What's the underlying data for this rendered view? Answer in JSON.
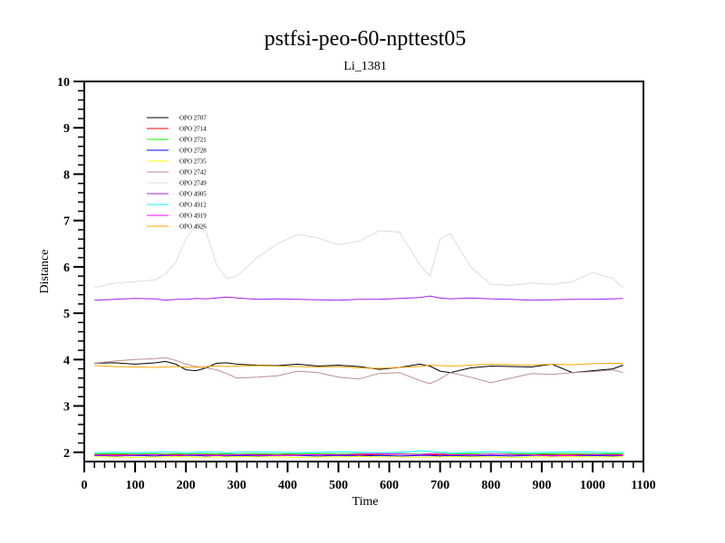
{
  "chart_data": {
    "type": "line",
    "title": "pstfsi-peo-60-npttest05",
    "subtitle": "Li_1381",
    "xlabel": "Time",
    "ylabel": "Distance",
    "xlim": [
      0,
      1100
    ],
    "ylim": [
      1.8,
      10
    ],
    "x_ticks": [
      0,
      100,
      200,
      300,
      400,
      500,
      600,
      700,
      800,
      900,
      1000,
      1100
    ],
    "y_ticks": [
      2,
      3,
      4,
      5,
      6,
      7,
      8,
      9,
      10
    ],
    "grid": false,
    "legend_position": "top-left",
    "x": [
      20,
      60,
      100,
      140,
      160,
      180,
      200,
      220,
      240,
      260,
      280,
      300,
      340,
      380,
      420,
      460,
      500,
      540,
      580,
      620,
      660,
      680,
      700,
      720,
      760,
      800,
      840,
      880,
      920,
      960,
      1000,
      1040,
      1060
    ],
    "series": [
      {
        "name": "OPO 2707",
        "color": "#000000",
        "values": [
          3.92,
          3.93,
          3.9,
          3.93,
          3.96,
          3.9,
          3.78,
          3.76,
          3.82,
          3.92,
          3.93,
          3.9,
          3.88,
          3.87,
          3.9,
          3.86,
          3.88,
          3.85,
          3.79,
          3.83,
          3.9,
          3.86,
          3.75,
          3.72,
          3.82,
          3.86,
          3.85,
          3.84,
          3.9,
          3.72,
          3.76,
          3.8,
          3.88
        ]
      },
      {
        "name": "OPO 2714",
        "color": "#ff0000",
        "values": [
          1.95,
          1.95,
          1.94,
          1.96,
          1.95,
          1.95,
          1.94,
          1.95,
          1.96,
          1.95,
          1.94,
          1.95,
          1.95,
          1.96,
          1.94,
          1.95,
          1.95,
          1.94,
          1.95,
          1.96,
          1.95,
          1.95,
          1.94,
          1.95,
          1.95,
          1.96,
          1.95,
          1.94,
          1.95,
          1.95,
          1.96,
          1.95,
          1.95
        ]
      },
      {
        "name": "OPO 2721",
        "color": "#00ff00",
        "values": [
          1.96,
          1.97,
          1.96,
          1.97,
          1.96,
          1.97,
          1.96,
          1.97,
          1.97,
          1.96,
          1.97,
          1.96,
          1.97,
          1.96,
          1.97,
          1.97,
          1.96,
          1.97,
          1.96,
          1.97,
          1.96,
          1.97,
          1.97,
          1.96,
          1.97,
          1.96,
          1.97,
          1.96,
          1.97,
          1.97,
          1.96,
          1.97,
          1.96
        ]
      },
      {
        "name": "OPO 2728",
        "color": "#0000ff",
        "values": [
          1.93,
          1.92,
          1.93,
          1.92,
          1.93,
          1.92,
          1.93,
          1.93,
          1.92,
          1.93,
          1.92,
          1.93,
          1.92,
          1.93,
          1.93,
          1.92,
          1.93,
          1.92,
          1.93,
          1.92,
          1.93,
          1.93,
          1.92,
          1.93,
          1.92,
          1.93,
          1.92,
          1.93,
          1.93,
          1.92,
          1.93,
          1.92,
          1.93
        ]
      },
      {
        "name": "OPO 2735",
        "color": "#ffff00",
        "values": [
          1.9,
          1.9,
          1.89,
          1.9,
          1.9,
          1.91,
          1.9,
          1.9,
          1.89,
          1.9,
          1.9,
          1.91,
          1.9,
          1.9,
          1.89,
          1.9,
          1.9,
          1.91,
          1.9,
          1.9,
          1.89,
          1.9,
          1.9,
          1.91,
          1.9,
          1.9,
          1.89,
          1.9,
          1.9,
          1.91,
          1.9,
          1.9,
          1.9
        ]
      },
      {
        "name": "OPO 2742",
        "color": "#bc8f8f",
        "values": [
          3.92,
          3.97,
          4.0,
          4.02,
          4.04,
          3.98,
          3.9,
          3.85,
          3.82,
          3.78,
          3.7,
          3.6,
          3.62,
          3.65,
          3.75,
          3.72,
          3.62,
          3.58,
          3.7,
          3.72,
          3.55,
          3.48,
          3.58,
          3.72,
          3.62,
          3.5,
          3.6,
          3.7,
          3.68,
          3.72,
          3.74,
          3.78,
          3.72
        ]
      },
      {
        "name": "OPO 2749",
        "color": "#dcdcdc",
        "values": [
          5.55,
          5.65,
          5.68,
          5.72,
          5.85,
          6.1,
          6.6,
          6.9,
          6.75,
          6.05,
          5.75,
          5.8,
          6.2,
          6.5,
          6.7,
          6.62,
          6.48,
          6.55,
          6.78,
          6.75,
          6.05,
          5.8,
          6.6,
          6.72,
          6.0,
          5.62,
          5.6,
          5.65,
          5.62,
          5.68,
          5.88,
          5.75,
          5.55
        ]
      },
      {
        "name": "OPO 4905",
        "color": "#a020f0",
        "values": [
          5.28,
          5.3,
          5.32,
          5.31,
          5.28,
          5.3,
          5.3,
          5.32,
          5.31,
          5.33,
          5.35,
          5.33,
          5.3,
          5.31,
          5.3,
          5.29,
          5.28,
          5.3,
          5.3,
          5.32,
          5.34,
          5.37,
          5.33,
          5.31,
          5.33,
          5.31,
          5.3,
          5.28,
          5.29,
          5.3,
          5.3,
          5.31,
          5.32
        ]
      },
      {
        "name": "OPO 4912",
        "color": "#00ffff",
        "values": [
          1.99,
          2.0,
          1.99,
          2.0,
          2.01,
          2.0,
          1.99,
          2.0,
          2.01,
          2.0,
          1.99,
          2.0,
          2.01,
          2.0,
          1.99,
          2.0,
          2.01,
          2.0,
          1.99,
          2.0,
          2.03,
          2.02,
          2.0,
          1.99,
          2.0,
          2.01,
          2.0,
          1.99,
          2.0,
          2.01,
          2.0,
          1.99,
          2.0
        ]
      },
      {
        "name": "OPO 4919",
        "color": "#ff00ff",
        "values": [
          1.94,
          1.93,
          1.94,
          1.95,
          1.94,
          1.93,
          1.94,
          1.95,
          1.94,
          1.93,
          1.94,
          1.95,
          1.94,
          1.93,
          1.94,
          1.95,
          1.94,
          1.96,
          1.97,
          1.96,
          1.95,
          1.97,
          1.96,
          1.95,
          1.94,
          1.96,
          1.95,
          1.94,
          1.92,
          1.93,
          1.95,
          1.94,
          1.93
        ]
      },
      {
        "name": "OPO 4926",
        "color": "#ffa500",
        "values": [
          3.87,
          3.85,
          3.84,
          3.83,
          3.84,
          3.85,
          3.84,
          3.83,
          3.85,
          3.86,
          3.85,
          3.86,
          3.87,
          3.86,
          3.85,
          3.84,
          3.85,
          3.82,
          3.81,
          3.83,
          3.85,
          3.88,
          3.87,
          3.86,
          3.88,
          3.9,
          3.89,
          3.88,
          3.9,
          3.89,
          3.91,
          3.92,
          3.91
        ]
      }
    ]
  }
}
